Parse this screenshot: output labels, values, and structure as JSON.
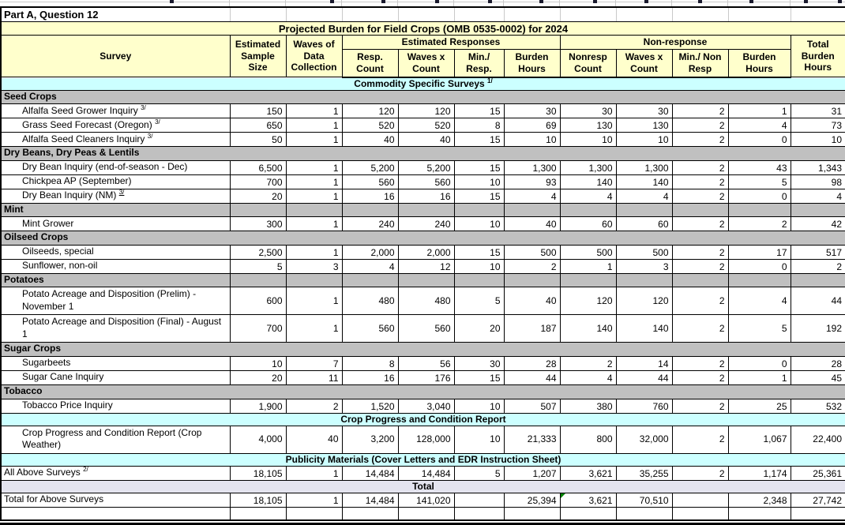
{
  "page": {
    "top_label": "Part A, Question 12"
  },
  "colors": {
    "header_fill": "#ffffcc",
    "section_fill": "#c0c0c0",
    "band_fill": "#ccffff",
    "total_band_fill": "#e4e4ef",
    "error_flag": "#008000",
    "border": "#000000"
  },
  "table": {
    "title": "Projected Burden for Field Crops (OMB 0535-0002) for 2024",
    "columns": {
      "survey": "Survey",
      "sample_size": "Estimated\nSample\nSize",
      "waves": "Waves of\nData\nCollection",
      "est_responses_group": "Estimated Responses",
      "nonresponse_group": "Non-response",
      "resp_count": "Resp.\nCount",
      "waves_x_count": "Waves x\nCount",
      "min_resp": "Min./ Resp.",
      "burden_hours": "Burden\nHours",
      "nonresp_count": "Nonresp\nCount",
      "nr_waves_x_count": "Waves x\nCount",
      "min_non_resp": "Min./ Non\nResp",
      "nr_burden_hours": "Burden\nHours",
      "total_burden": "Total\nBurden\nHours"
    },
    "rows": [
      {
        "type": "band",
        "style": "cyan",
        "label": "Commodity Specific Surveys",
        "sup": "1/"
      },
      {
        "type": "section",
        "label": "Seed Crops"
      },
      {
        "type": "data",
        "indent": true,
        "label": "Alfalfa Seed Grower  Inquiry",
        "sup": "3/",
        "values": [
          "150",
          "1",
          "120",
          "120",
          "15",
          "30",
          "30",
          "30",
          "2",
          "1",
          "31"
        ]
      },
      {
        "type": "data",
        "indent": true,
        "label": "Grass Seed Forecast (Oregon)",
        "sup": "3/",
        "values": [
          "650",
          "1",
          "520",
          "520",
          "8",
          "69",
          "130",
          "130",
          "2",
          "4",
          "73"
        ]
      },
      {
        "type": "data",
        "indent": true,
        "label": "Alfalfa Seed Cleaners Inquiry",
        "sup": "3/",
        "values": [
          "50",
          "1",
          "40",
          "40",
          "15",
          "10",
          "10",
          "10",
          "2",
          "0",
          "10"
        ]
      },
      {
        "type": "section",
        "label": "Dry Beans, Dry Peas & Lentils"
      },
      {
        "type": "data",
        "indent": true,
        "label": "Dry Bean Inquiry (end-of-season - Dec)",
        "values": [
          "6,500",
          "1",
          "5,200",
          "5,200",
          "15",
          "1,300",
          "1,300",
          "1,300",
          "2",
          "43",
          "1,343"
        ]
      },
      {
        "type": "data",
        "indent": true,
        "label": "Chickpea AP (September)",
        "values": [
          "700",
          "1",
          "560",
          "560",
          "10",
          "93",
          "140",
          "140",
          "2",
          "5",
          "98"
        ]
      },
      {
        "type": "data",
        "indent": true,
        "label": "Dry Bean Inquiry (NM)",
        "sup": "3/",
        "sup_underline": true,
        "values": [
          "20",
          "1",
          "16",
          "16",
          "15",
          "4",
          "4",
          "4",
          "2",
          "0",
          "4"
        ]
      },
      {
        "type": "section",
        "label": "Mint",
        "bordered": true
      },
      {
        "type": "data",
        "indent": true,
        "label": "Mint Grower",
        "values": [
          "300",
          "1",
          "240",
          "240",
          "10",
          "40",
          "60",
          "60",
          "2",
          "2",
          "42"
        ]
      },
      {
        "type": "section",
        "label": "Oilseed Crops"
      },
      {
        "type": "data",
        "indent": true,
        "label": "Oilseeds, special",
        "values": [
          "2,500",
          "1",
          "2,000",
          "2,000",
          "15",
          "500",
          "500",
          "500",
          "2",
          "17",
          "517"
        ]
      },
      {
        "type": "data",
        "indent": true,
        "label": "Sunflower, non-oil",
        "values": [
          "5",
          "3",
          "4",
          "12",
          "10",
          "2",
          "1",
          "3",
          "2",
          "0",
          "2"
        ]
      },
      {
        "type": "section",
        "label": "Potatoes",
        "bordered": true
      },
      {
        "type": "data",
        "indent": true,
        "tall": true,
        "label": "Potato Acreage and Disposition (Prelim) - November 1",
        "values": [
          "600",
          "1",
          "480",
          "480",
          "5",
          "40",
          "120",
          "120",
          "2",
          "4",
          "44"
        ]
      },
      {
        "type": "data",
        "indent": true,
        "tall": true,
        "label": "Potato Acreage and Disposition (Final) - August 1",
        "values": [
          "700",
          "1",
          "560",
          "560",
          "20",
          "187",
          "140",
          "140",
          "2",
          "5",
          "192"
        ]
      },
      {
        "type": "section",
        "label": "Sugar Crops"
      },
      {
        "type": "data",
        "indent": true,
        "label": "Sugarbeets",
        "values": [
          "10",
          "7",
          "8",
          "56",
          "30",
          "28",
          "2",
          "14",
          "2",
          "0",
          "28"
        ]
      },
      {
        "type": "data",
        "indent": true,
        "label": "Sugar Cane Inquiry",
        "values": [
          "20",
          "11",
          "16",
          "176",
          "15",
          "44",
          "4",
          "44",
          "2",
          "1",
          "45"
        ]
      },
      {
        "type": "section",
        "label": "Tobacco"
      },
      {
        "type": "data",
        "indent": true,
        "label": "Tobacco Price Inquiry",
        "values": [
          "1,900",
          "2",
          "1,520",
          "3,040",
          "10",
          "507",
          "380",
          "760",
          "2",
          "25",
          "532"
        ]
      },
      {
        "type": "band",
        "style": "cyan",
        "label": "Crop Progress and Condition Report"
      },
      {
        "type": "data",
        "indent": true,
        "tall": true,
        "label": "Crop Progress and Condition Report (Crop Weather)",
        "values": [
          "4,000",
          "40",
          "3,200",
          "128,000",
          "10",
          "21,333",
          "800",
          "32,000",
          "2",
          "1,067",
          "22,400"
        ]
      },
      {
        "type": "band",
        "style": "cyan",
        "label": "Publicity Materials (Cover Letters and EDR Instruction Sheet)"
      },
      {
        "type": "data",
        "indent": false,
        "label": "All Above Surveys",
        "sup": "2/",
        "values": [
          "18,105",
          "1",
          "14,484",
          "14,484",
          "5",
          "1,207",
          "3,621",
          "35,255",
          "2",
          "1,174",
          "25,361"
        ]
      },
      {
        "type": "band",
        "style": "total",
        "label": "Total"
      },
      {
        "type": "data",
        "indent": false,
        "label": "Total for Above Surveys",
        "flag_col": 6,
        "values": [
          "18,105",
          "1",
          "14,484",
          "141,020",
          "",
          "25,394",
          "3,621",
          "70,510",
          "",
          "2,348",
          "27,742"
        ]
      },
      {
        "type": "data",
        "indent": false,
        "label": "",
        "empty": true,
        "values": [
          "",
          "",
          "",
          "",
          "",
          "",
          "",
          "",
          "",
          "",
          ""
        ]
      }
    ]
  }
}
